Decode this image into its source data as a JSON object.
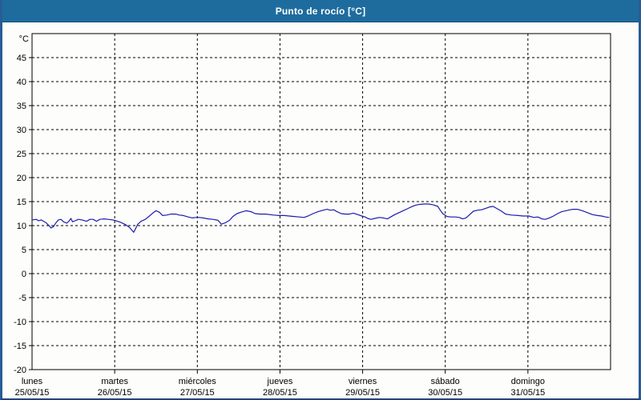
{
  "window": {
    "title": "Punto de rocío [°C]"
  },
  "colors": {
    "titlebar_bg": "#1e6c9e",
    "titlebar_text": "#ffffff",
    "frame": "#265d96",
    "panel_bg": "#fdfdfb",
    "plot_border": "#000000",
    "grid": "#000000",
    "line": "#1c1cb0"
  },
  "chart_data": {
    "type": "line",
    "title": "Punto de rocío [°C]",
    "ylabel": "°C",
    "y_unit_label": "°C",
    "y_ticks": [
      45,
      40,
      35,
      30,
      25,
      20,
      15,
      10,
      5,
      0,
      -5,
      -10,
      -15,
      -20
    ],
    "ylim": [
      -20,
      50
    ],
    "grid": "dashed",
    "legend": "none",
    "x_days": [
      {
        "name": "lunes",
        "date": "25/05/15"
      },
      {
        "name": "martes",
        "date": "26/05/15"
      },
      {
        "name": "miércoles",
        "date": "27/05/15"
      },
      {
        "name": "jueves",
        "date": "28/05/15"
      },
      {
        "name": "viernes",
        "date": "29/05/15"
      },
      {
        "name": "sábado",
        "date": "30/05/15"
      },
      {
        "name": "domingo",
        "date": "31/05/15"
      }
    ],
    "xlim_days": [
      0,
      7
    ],
    "series": [
      {
        "name": "Punto de rocío",
        "color": "#1c1cb0",
        "x_unit": "days from lunes 25/05/15 00:00",
        "points": [
          [
            0.01,
            11.2
          ],
          [
            0.05,
            11.3
          ],
          [
            0.08,
            11.0
          ],
          [
            0.11,
            11.2
          ],
          [
            0.14,
            10.9
          ],
          [
            0.17,
            10.6
          ],
          [
            0.21,
            9.9
          ],
          [
            0.23,
            9.5
          ],
          [
            0.26,
            9.8
          ],
          [
            0.29,
            10.6
          ],
          [
            0.32,
            11.2
          ],
          [
            0.35,
            11.3
          ],
          [
            0.38,
            10.8
          ],
          [
            0.42,
            10.5
          ],
          [
            0.45,
            11.0
          ],
          [
            0.47,
            11.5
          ],
          [
            0.49,
            10.8
          ],
          [
            0.52,
            11.0
          ],
          [
            0.56,
            11.3
          ],
          [
            0.6,
            11.2
          ],
          [
            0.66,
            10.9
          ],
          [
            0.7,
            11.3
          ],
          [
            0.74,
            11.3
          ],
          [
            0.78,
            10.9
          ],
          [
            0.82,
            11.3
          ],
          [
            0.87,
            11.4
          ],
          [
            0.92,
            11.3
          ],
          [
            0.97,
            11.2
          ],
          [
            1.0,
            11.1
          ],
          [
            1.07,
            10.7
          ],
          [
            1.13,
            10.2
          ],
          [
            1.18,
            9.6
          ],
          [
            1.23,
            8.6
          ],
          [
            1.28,
            10.3
          ],
          [
            1.32,
            10.9
          ],
          [
            1.37,
            11.3
          ],
          [
            1.42,
            12.0
          ],
          [
            1.46,
            12.6
          ],
          [
            1.5,
            13.1
          ],
          [
            1.54,
            12.8
          ],
          [
            1.58,
            12.1
          ],
          [
            1.63,
            12.2
          ],
          [
            1.68,
            12.4
          ],
          [
            1.74,
            12.4
          ],
          [
            1.78,
            12.2
          ],
          [
            1.83,
            12.1
          ],
          [
            1.89,
            11.8
          ],
          [
            1.94,
            11.6
          ],
          [
            1.98,
            11.7
          ],
          [
            2.02,
            11.7
          ],
          [
            2.07,
            11.6
          ],
          [
            2.13,
            11.4
          ],
          [
            2.19,
            11.3
          ],
          [
            2.25,
            11.1
          ],
          [
            2.29,
            10.3
          ],
          [
            2.34,
            10.6
          ],
          [
            2.39,
            11.1
          ],
          [
            2.43,
            11.9
          ],
          [
            2.48,
            12.5
          ],
          [
            2.53,
            12.8
          ],
          [
            2.59,
            13.1
          ],
          [
            2.65,
            12.9
          ],
          [
            2.7,
            12.5
          ],
          [
            2.76,
            12.4
          ],
          [
            2.83,
            12.4
          ],
          [
            2.92,
            12.2
          ],
          [
            2.99,
            12.1
          ],
          [
            3.05,
            12.1
          ],
          [
            3.11,
            12.0
          ],
          [
            3.17,
            11.9
          ],
          [
            3.23,
            11.8
          ],
          [
            3.29,
            11.7
          ],
          [
            3.34,
            12.0
          ],
          [
            3.4,
            12.5
          ],
          [
            3.46,
            12.9
          ],
          [
            3.52,
            13.2
          ],
          [
            3.57,
            13.4
          ],
          [
            3.61,
            13.2
          ],
          [
            3.65,
            13.3
          ],
          [
            3.69,
            12.9
          ],
          [
            3.74,
            12.5
          ],
          [
            3.79,
            12.4
          ],
          [
            3.84,
            12.4
          ],
          [
            3.89,
            12.6
          ],
          [
            3.94,
            12.3
          ],
          [
            3.99,
            12.0
          ],
          [
            4.03,
            11.8
          ],
          [
            4.06,
            11.5
          ],
          [
            4.1,
            11.3
          ],
          [
            4.15,
            11.5
          ],
          [
            4.2,
            11.7
          ],
          [
            4.25,
            11.6
          ],
          [
            4.3,
            11.4
          ],
          [
            4.34,
            11.8
          ],
          [
            4.39,
            12.3
          ],
          [
            4.44,
            12.7
          ],
          [
            4.49,
            13.1
          ],
          [
            4.54,
            13.5
          ],
          [
            4.59,
            13.9
          ],
          [
            4.63,
            14.2
          ],
          [
            4.68,
            14.4
          ],
          [
            4.74,
            14.5
          ],
          [
            4.8,
            14.5
          ],
          [
            4.86,
            14.3
          ],
          [
            4.91,
            14.0
          ],
          [
            4.94,
            13.2
          ],
          [
            4.97,
            12.5
          ],
          [
            5.02,
            11.9
          ],
          [
            5.07,
            11.8
          ],
          [
            5.12,
            11.8
          ],
          [
            5.17,
            11.7
          ],
          [
            5.21,
            11.4
          ],
          [
            5.25,
            11.6
          ],
          [
            5.29,
            12.2
          ],
          [
            5.34,
            13.0
          ],
          [
            5.39,
            13.2
          ],
          [
            5.44,
            13.3
          ],
          [
            5.49,
            13.6
          ],
          [
            5.54,
            13.9
          ],
          [
            5.58,
            14.0
          ],
          [
            5.63,
            13.5
          ],
          [
            5.68,
            13.0
          ],
          [
            5.73,
            12.4
          ],
          [
            5.8,
            12.2
          ],
          [
            5.88,
            12.1
          ],
          [
            5.94,
            12.0
          ],
          [
            6.01,
            12.0
          ],
          [
            6.07,
            11.7
          ],
          [
            6.12,
            11.8
          ],
          [
            6.17,
            11.4
          ],
          [
            6.21,
            11.3
          ],
          [
            6.26,
            11.6
          ],
          [
            6.31,
            12.0
          ],
          [
            6.36,
            12.5
          ],
          [
            6.41,
            12.9
          ],
          [
            6.46,
            13.1
          ],
          [
            6.51,
            13.3
          ],
          [
            6.55,
            13.4
          ],
          [
            6.6,
            13.4
          ],
          [
            6.66,
            13.1
          ],
          [
            6.72,
            12.7
          ],
          [
            6.78,
            12.3
          ],
          [
            6.84,
            12.1
          ],
          [
            6.89,
            12.0
          ],
          [
            6.94,
            11.8
          ],
          [
            6.98,
            11.7
          ]
        ]
      }
    ]
  }
}
